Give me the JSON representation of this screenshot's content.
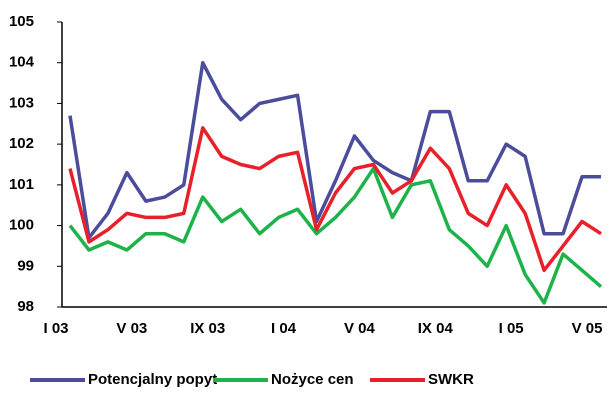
{
  "chart_data": {
    "type": "line",
    "categories": [
      "I 03",
      null,
      null,
      null,
      "V 03",
      null,
      null,
      null,
      "IX 03",
      null,
      null,
      null,
      "I 04",
      null,
      null,
      null,
      "V 04",
      null,
      null,
      null,
      "IX 04",
      null,
      null,
      null,
      "I 05",
      null,
      null,
      null,
      "V 05"
    ],
    "series": [
      {
        "name": "Potencjalny popyt",
        "color": "#4b4c9c",
        "values": [
          102.7,
          99.7,
          100.3,
          101.3,
          100.6,
          100.7,
          101,
          104,
          103.1,
          102.6,
          103,
          103.1,
          103.2,
          100.1,
          101.1,
          102.2,
          101.6,
          101.3,
          101.1,
          102.8,
          102.8,
          101.1,
          101.1,
          102,
          101.7,
          99.8,
          99.8,
          101.2,
          101.2
        ]
      },
      {
        "name": "Nożyce cen",
        "color": "#1db34a",
        "values": [
          100,
          99.4,
          99.6,
          99.4,
          99.8,
          99.8,
          99.6,
          100.7,
          100.1,
          100.4,
          99.8,
          100.2,
          100.4,
          99.8,
          100.2,
          100.7,
          101.4,
          100.2,
          101,
          101.1,
          99.9,
          99.5,
          99,
          100,
          98.8,
          98.1,
          99.3,
          98.9,
          98.5
        ]
      },
      {
        "name": "SWKR",
        "color": "#e8202a",
        "values": [
          101.4,
          99.6,
          99.9,
          100.3,
          100.2,
          100.2,
          100.3,
          102.4,
          101.7,
          101.5,
          101.4,
          101.7,
          101.8,
          99.9,
          100.8,
          101.4,
          101.5,
          100.8,
          101.1,
          101.9,
          101.4,
          100.3,
          100,
          101,
          100.3,
          98.9,
          99.5,
          100.1,
          99.8
        ]
      }
    ],
    "ylim": [
      98,
      105
    ],
    "yticks": [
      98,
      99,
      100,
      101,
      102,
      103,
      104,
      105
    ],
    "grid": false,
    "legend": "bottom"
  }
}
